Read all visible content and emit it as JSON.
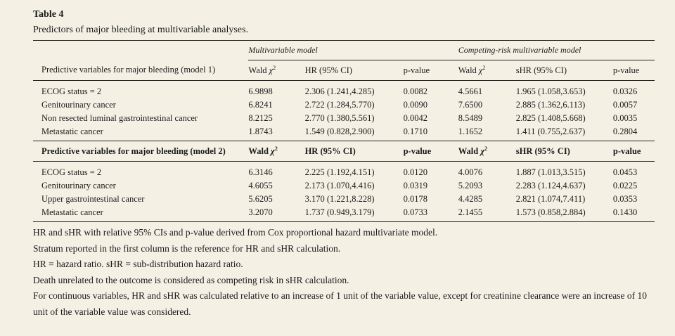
{
  "table": {
    "label": "Table 4",
    "caption": "Predictors of major bleeding at multivariable analyses.",
    "group_headers": [
      "Multivariable model",
      "Competing-risk multivariable model"
    ],
    "chi_symbol": "χ",
    "chi_sup": "2",
    "sections": [
      {
        "header": [
          "Predictive variables for major bleeding (model 1)",
          "Wald",
          "HR (95% CI)",
          "p-value",
          "Wald",
          "sHR (95% CI)",
          "p-value"
        ],
        "rows": [
          [
            "ECOG status = 2",
            "6.9898",
            "2.306 (1.241,4.285)",
            "0.0082",
            "4.5661",
            "1.965 (1.058,3.653)",
            "0.0326"
          ],
          [
            "Genitourinary cancer",
            "6.8241",
            "2.722 (1.284,5.770)",
            "0.0090",
            "7.6500",
            "2.885 (1.362,6.113)",
            "0.0057"
          ],
          [
            "Non resected luminal gastrointestinal cancer",
            "8.2125",
            "2.770 (1.380,5.561)",
            "0.0042",
            "8.5489",
            "2.825 (1.408,5.668)",
            "0.0035"
          ],
          [
            "Metastatic cancer",
            "1.8743",
            "1.549 (0.828,2.900)",
            "0.1710",
            "1.1652",
            "1.411 (0.755,2.637)",
            "0.2804"
          ]
        ]
      },
      {
        "header": [
          "Predictive variables for major bleeding (model 2)",
          "Wald",
          "HR (95% CI)",
          "p-value",
          "Wald",
          "sHR (95% CI)",
          "p-value"
        ],
        "rows": [
          [
            "ECOG status = 2",
            "6.3146",
            "2.225 (1.192,4.151)",
            "0.0120",
            "4.0076",
            "1.887 (1.013,3.515)",
            "0.0453"
          ],
          [
            "Genitourinary cancer",
            "4.6055",
            "2.173 (1.070,4.416)",
            "0.0319",
            "5.2093",
            "2.283 (1.124,4.637)",
            "0.0225"
          ],
          [
            "Upper gastrointestinal cancer",
            "5.6205",
            "3.170 (1.221,8.228)",
            "0.0178",
            "4.4285",
            "2.821 (1.074,7.411)",
            "0.0353"
          ],
          [
            "Metastatic cancer",
            "3.2070",
            "1.737 (0.949,3.179)",
            "0.0733",
            "2.1455",
            "1.573 (0.858,2.884)",
            "0.1430"
          ]
        ]
      }
    ]
  },
  "notes": [
    "HR and sHR with relative 95% CIs and p-value derived from Cox proportional hazard multivariate model.",
    "Stratum reported in the first column is the reference for HR and sHR calculation.",
    "HR = hazard ratio. sHR = sub-distribution hazard ratio.",
    "Death unrelated to the outcome is considered as competing risk in sHR calculation.",
    "For continuous variables, HR and sHR was calculated relative to an increase of 1 unit of the variable value, except for creatinine clearance were an increase of 10 unit of the variable value was considered."
  ]
}
